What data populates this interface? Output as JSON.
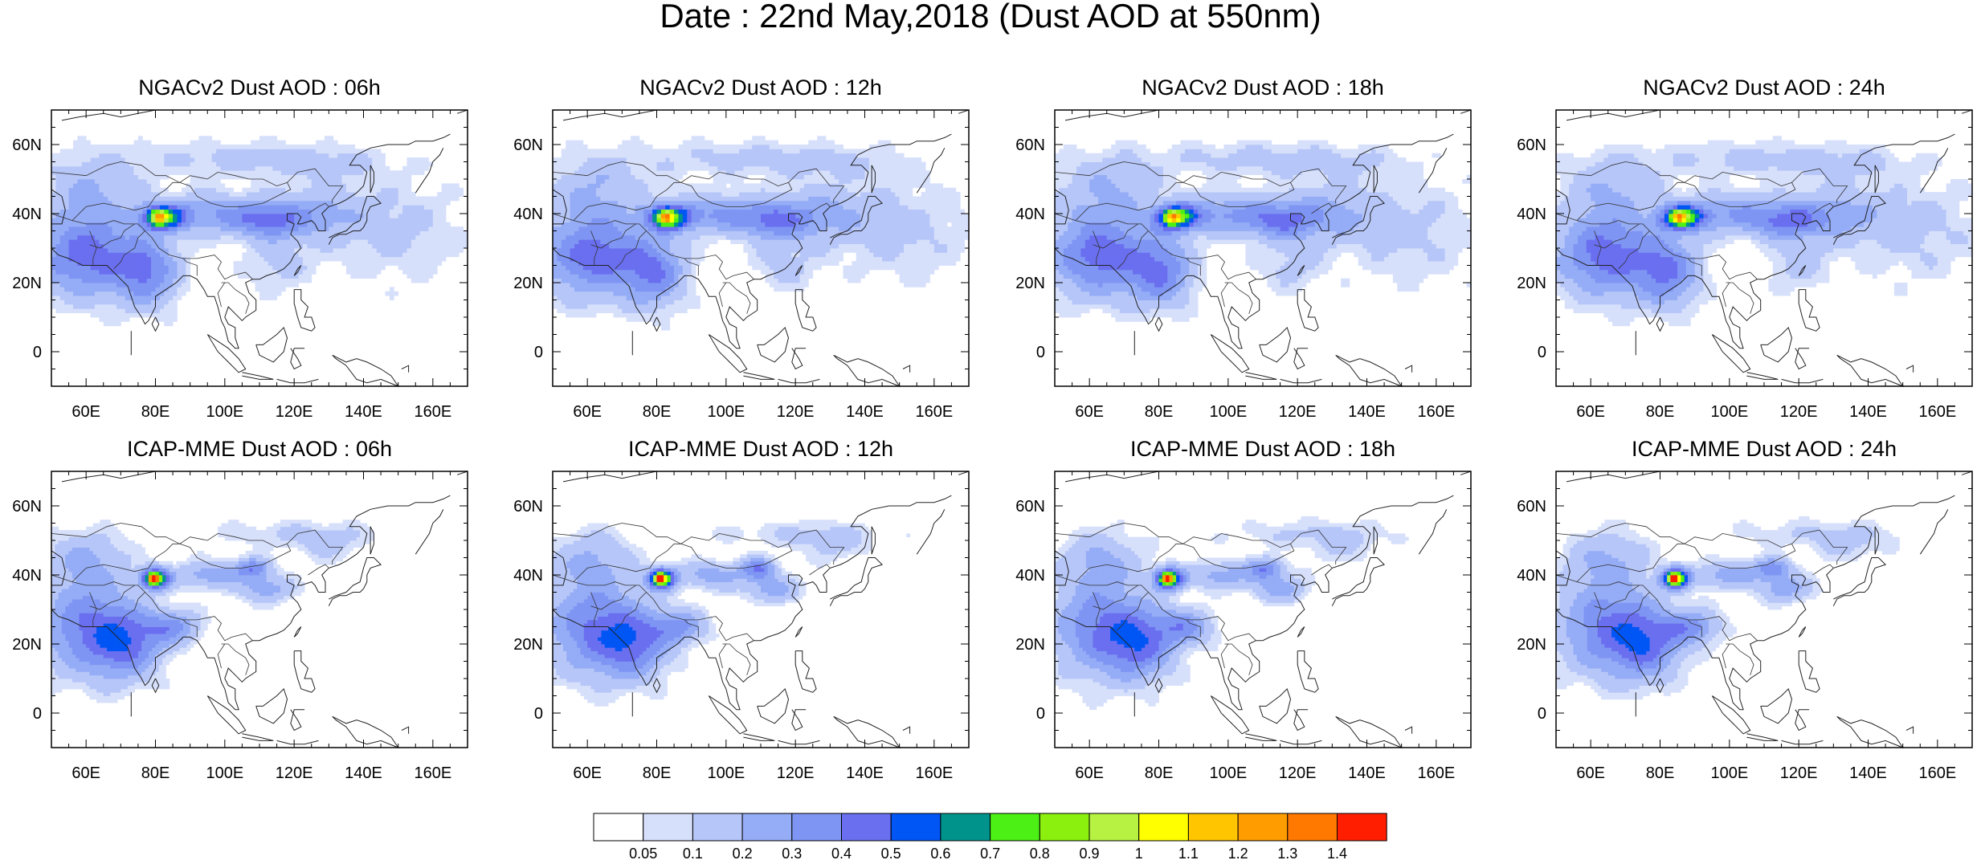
{
  "title": "Date : 22nd May,2018 (Dust AOD at 550nm)",
  "panels": [
    {
      "title": "NGACv2 Dust AOD : 06h"
    },
    {
      "title": "NGACv2 Dust AOD : 12h"
    },
    {
      "title": "NGACv2 Dust AOD : 18h"
    },
    {
      "title": "NGACv2 Dust AOD : 24h"
    },
    {
      "title": "ICAP-MME Dust AOD : 06h"
    },
    {
      "title": "ICAP-MME Dust AOD : 12h"
    },
    {
      "title": "ICAP-MME Dust AOD : 18h"
    },
    {
      "title": "ICAP-MME Dust AOD : 24h"
    }
  ],
  "map": {
    "lon_range": [
      50,
      170
    ],
    "lat_range": [
      -10,
      70
    ],
    "lon_ticks": [
      "60E",
      "80E",
      "100E",
      "120E",
      "140E",
      "160E"
    ],
    "lat_ticks": [
      "0",
      "20N",
      "40N",
      "60N"
    ]
  },
  "colorbar": {
    "labels": [
      "0.05",
      "0.1",
      "0.2",
      "0.3",
      "0.4",
      "0.5",
      "0.6",
      "0.7",
      "0.8",
      "0.9",
      "1",
      "1.1",
      "1.2",
      "1.3",
      "1.4"
    ],
    "colors": [
      "#ffffff",
      "#d7e0fb",
      "#b6c6f8",
      "#95acf6",
      "#7f95f3",
      "#6a6ff0",
      "#0055f5",
      "#00938c",
      "#4cf014",
      "#8cf00f",
      "#b7f243",
      "#ffff00",
      "#ffc600",
      "#ff9c00",
      "#ff7800",
      "#ff1e00"
    ]
  }
}
